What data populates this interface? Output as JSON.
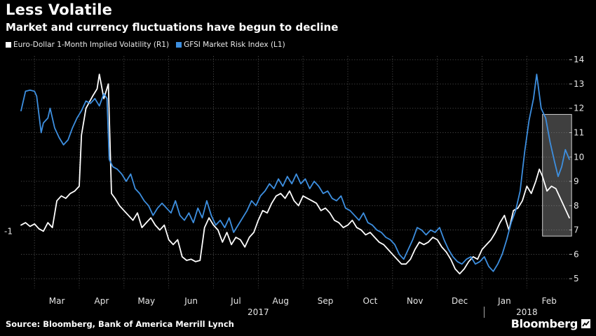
{
  "header": {
    "title": "Less Volatile",
    "subtitle": "Market and currency fluctuations have begun to decline"
  },
  "legend": {
    "items": [
      {
        "label": "Euro-Dollar 1-Month Implied Volatility (R1)",
        "color": "#ffffff"
      },
      {
        "label": "GFSI Market Risk Index (L1)",
        "color": "#3d8fe0"
      }
    ]
  },
  "footer": {
    "source": "Source: Bloomberg, Bank of America Merrill Lynch",
    "brand": "Bloomberg"
  },
  "chart_data": {
    "type": "line",
    "x_unit": "months since 1 March 2017",
    "x_range": [
      -0.3,
      11.95
    ],
    "month_ticks": [
      {
        "label": "Mar",
        "x": 0.5
      },
      {
        "label": "Apr",
        "x": 1.5
      },
      {
        "label": "May",
        "x": 2.5
      },
      {
        "label": "Jun",
        "x": 3.5
      },
      {
        "label": "Jul",
        "x": 4.5
      },
      {
        "label": "Aug",
        "x": 5.5
      },
      {
        "label": "Sep",
        "x": 6.5
      },
      {
        "label": "Oct",
        "x": 7.5
      },
      {
        "label": "Nov",
        "x": 8.5
      },
      {
        "label": "Dec",
        "x": 9.5
      },
      {
        "label": "Jan",
        "x": 10.5
      },
      {
        "label": "Feb",
        "x": 11.5
      }
    ],
    "year_labels": [
      {
        "label": "2017",
        "x": 5.0
      },
      {
        "label": "2018",
        "x": 11.0
      }
    ],
    "year_divider_x": 10.0,
    "right_axis": {
      "ticks": [
        5,
        6,
        7,
        8,
        9,
        10,
        11,
        12,
        13,
        14
      ],
      "range": [
        4.6,
        14.15
      ]
    },
    "left_axis": {
      "ticks": [
        -1
      ],
      "value_at_right": 6.95
    },
    "highlight_box": {
      "x0": 11.35,
      "x1": 12.0,
      "y0": 6.75,
      "y1": 11.75
    },
    "grid": true,
    "legend_position": "top-left",
    "series": [
      {
        "name": "Euro-Dollar 1-Month Implied Volatility (R1)",
        "color": "#ffffff",
        "axis": "right",
        "points": [
          [
            -0.3,
            7.2
          ],
          [
            -0.2,
            7.3
          ],
          [
            -0.1,
            7.15
          ],
          [
            0,
            7.25
          ],
          [
            0.1,
            7.05
          ],
          [
            0.2,
            6.95
          ],
          [
            0.3,
            7.3
          ],
          [
            0.4,
            7.1
          ],
          [
            0.5,
            8.2
          ],
          [
            0.6,
            8.4
          ],
          [
            0.7,
            8.3
          ],
          [
            0.8,
            8.5
          ],
          [
            0.9,
            8.6
          ],
          [
            1.0,
            8.8
          ],
          [
            1.05,
            10.9
          ],
          [
            1.15,
            12.0
          ],
          [
            1.3,
            12.5
          ],
          [
            1.4,
            12.8
          ],
          [
            1.45,
            13.4
          ],
          [
            1.55,
            12.4
          ],
          [
            1.65,
            13.0
          ],
          [
            1.72,
            8.5
          ],
          [
            1.8,
            8.3
          ],
          [
            1.9,
            8.0
          ],
          [
            2.0,
            7.8
          ],
          [
            2.1,
            7.6
          ],
          [
            2.2,
            7.4
          ],
          [
            2.3,
            7.7
          ],
          [
            2.4,
            7.1
          ],
          [
            2.5,
            7.3
          ],
          [
            2.6,
            7.5
          ],
          [
            2.7,
            7.2
          ],
          [
            2.8,
            7.0
          ],
          [
            2.9,
            7.2
          ],
          [
            3.0,
            6.6
          ],
          [
            3.1,
            6.4
          ],
          [
            3.2,
            6.6
          ],
          [
            3.3,
            5.9
          ],
          [
            3.4,
            5.75
          ],
          [
            3.5,
            5.8
          ],
          [
            3.6,
            5.7
          ],
          [
            3.7,
            5.75
          ],
          [
            3.8,
            7.1
          ],
          [
            3.9,
            7.5
          ],
          [
            4.0,
            7.2
          ],
          [
            4.1,
            7.0
          ],
          [
            4.2,
            6.5
          ],
          [
            4.3,
            6.9
          ],
          [
            4.4,
            6.4
          ],
          [
            4.5,
            6.7
          ],
          [
            4.6,
            6.6
          ],
          [
            4.7,
            6.3
          ],
          [
            4.8,
            6.7
          ],
          [
            4.9,
            6.9
          ],
          [
            5.0,
            7.4
          ],
          [
            5.1,
            7.8
          ],
          [
            5.2,
            7.7
          ],
          [
            5.3,
            8.1
          ],
          [
            5.4,
            8.4
          ],
          [
            5.5,
            8.5
          ],
          [
            5.6,
            8.3
          ],
          [
            5.7,
            8.6
          ],
          [
            5.8,
            8.2
          ],
          [
            5.9,
            8.0
          ],
          [
            6.0,
            8.4
          ],
          [
            6.1,
            8.3
          ],
          [
            6.2,
            8.2
          ],
          [
            6.3,
            8.1
          ],
          [
            6.4,
            7.8
          ],
          [
            6.5,
            7.9
          ],
          [
            6.6,
            7.7
          ],
          [
            6.7,
            7.4
          ],
          [
            6.8,
            7.3
          ],
          [
            6.9,
            7.1
          ],
          [
            7.0,
            7.2
          ],
          [
            7.1,
            7.4
          ],
          [
            7.2,
            7.1
          ],
          [
            7.3,
            7.0
          ],
          [
            7.4,
            6.8
          ],
          [
            7.5,
            6.9
          ],
          [
            7.6,
            6.7
          ],
          [
            7.7,
            6.5
          ],
          [
            7.8,
            6.4
          ],
          [
            7.9,
            6.2
          ],
          [
            8.0,
            6.0
          ],
          [
            8.1,
            5.8
          ],
          [
            8.2,
            5.6
          ],
          [
            8.3,
            5.6
          ],
          [
            8.4,
            5.8
          ],
          [
            8.5,
            6.2
          ],
          [
            8.6,
            6.5
          ],
          [
            8.7,
            6.4
          ],
          [
            8.8,
            6.5
          ],
          [
            8.9,
            6.7
          ],
          [
            9.0,
            6.6
          ],
          [
            9.1,
            6.3
          ],
          [
            9.2,
            6.1
          ],
          [
            9.3,
            5.8
          ],
          [
            9.4,
            5.4
          ],
          [
            9.5,
            5.2
          ],
          [
            9.6,
            5.4
          ],
          [
            9.7,
            5.7
          ],
          [
            9.8,
            5.9
          ],
          [
            9.9,
            5.8
          ],
          [
            10.0,
            6.2
          ],
          [
            10.1,
            6.4
          ],
          [
            10.2,
            6.6
          ],
          [
            10.3,
            6.9
          ],
          [
            10.4,
            7.3
          ],
          [
            10.5,
            7.6
          ],
          [
            10.6,
            7.0
          ],
          [
            10.7,
            7.8
          ],
          [
            10.8,
            7.9
          ],
          [
            10.9,
            8.2
          ],
          [
            11.0,
            8.8
          ],
          [
            11.1,
            8.5
          ],
          [
            11.2,
            9.0
          ],
          [
            11.28,
            9.5
          ],
          [
            11.35,
            9.2
          ],
          [
            11.45,
            8.6
          ],
          [
            11.55,
            8.8
          ],
          [
            11.65,
            8.7
          ],
          [
            11.75,
            8.3
          ],
          [
            11.85,
            7.9
          ],
          [
            11.95,
            7.5
          ]
        ]
      },
      {
        "name": "GFSI Market Risk Index (L1)",
        "color": "#3d8fe0",
        "axis": "left",
        "points": [
          [
            -0.3,
            11.9
          ],
          [
            -0.2,
            12.7
          ],
          [
            -0.1,
            12.75
          ],
          [
            0,
            12.7
          ],
          [
            0.05,
            12.5
          ],
          [
            0.15,
            11.0
          ],
          [
            0.2,
            11.4
          ],
          [
            0.3,
            11.6
          ],
          [
            0.35,
            12.0
          ],
          [
            0.45,
            11.2
          ],
          [
            0.55,
            10.8
          ],
          [
            0.65,
            10.5
          ],
          [
            0.75,
            10.7
          ],
          [
            0.85,
            11.2
          ],
          [
            0.95,
            11.6
          ],
          [
            1.05,
            11.9
          ],
          [
            1.15,
            12.3
          ],
          [
            1.25,
            12.2
          ],
          [
            1.35,
            12.4
          ],
          [
            1.45,
            12.1
          ],
          [
            1.55,
            12.6
          ],
          [
            1.62,
            12.4
          ],
          [
            1.67,
            9.9
          ],
          [
            1.75,
            9.6
          ],
          [
            1.85,
            9.5
          ],
          [
            1.95,
            9.3
          ],
          [
            2.05,
            9.0
          ],
          [
            2.15,
            9.3
          ],
          [
            2.25,
            8.7
          ],
          [
            2.35,
            8.5
          ],
          [
            2.45,
            8.2
          ],
          [
            2.55,
            8.0
          ],
          [
            2.65,
            7.6
          ],
          [
            2.75,
            7.9
          ],
          [
            2.85,
            8.1
          ],
          [
            2.95,
            7.9
          ],
          [
            3.05,
            7.7
          ],
          [
            3.15,
            8.2
          ],
          [
            3.25,
            7.6
          ],
          [
            3.35,
            7.4
          ],
          [
            3.45,
            7.7
          ],
          [
            3.55,
            7.3
          ],
          [
            3.65,
            7.9
          ],
          [
            3.75,
            7.5
          ],
          [
            3.85,
            8.2
          ],
          [
            3.95,
            7.6
          ],
          [
            4.05,
            7.2
          ],
          [
            4.15,
            7.4
          ],
          [
            4.25,
            7.1
          ],
          [
            4.35,
            7.5
          ],
          [
            4.45,
            6.9
          ],
          [
            4.55,
            7.2
          ],
          [
            4.65,
            7.5
          ],
          [
            4.75,
            7.8
          ],
          [
            4.85,
            8.2
          ],
          [
            4.95,
            8.0
          ],
          [
            5.05,
            8.4
          ],
          [
            5.15,
            8.6
          ],
          [
            5.25,
            8.9
          ],
          [
            5.35,
            8.7
          ],
          [
            5.45,
            9.1
          ],
          [
            5.55,
            8.8
          ],
          [
            5.65,
            9.2
          ],
          [
            5.75,
            8.9
          ],
          [
            5.85,
            9.3
          ],
          [
            5.95,
            8.9
          ],
          [
            6.05,
            9.1
          ],
          [
            6.15,
            8.7
          ],
          [
            6.25,
            9.0
          ],
          [
            6.35,
            8.8
          ],
          [
            6.45,
            8.5
          ],
          [
            6.55,
            8.6
          ],
          [
            6.65,
            8.3
          ],
          [
            6.75,
            8.2
          ],
          [
            6.85,
            8.4
          ],
          [
            6.95,
            7.9
          ],
          [
            7.05,
            7.8
          ],
          [
            7.15,
            7.6
          ],
          [
            7.25,
            7.4
          ],
          [
            7.35,
            7.7
          ],
          [
            7.45,
            7.3
          ],
          [
            7.55,
            7.2
          ],
          [
            7.65,
            7.0
          ],
          [
            7.75,
            6.9
          ],
          [
            7.85,
            6.7
          ],
          [
            7.95,
            6.6
          ],
          [
            8.05,
            6.4
          ],
          [
            8.15,
            6.0
          ],
          [
            8.25,
            5.8
          ],
          [
            8.35,
            6.2
          ],
          [
            8.45,
            6.6
          ],
          [
            8.55,
            7.1
          ],
          [
            8.65,
            7.0
          ],
          [
            8.75,
            6.8
          ],
          [
            8.85,
            7.0
          ],
          [
            8.95,
            6.9
          ],
          [
            9.05,
            7.1
          ],
          [
            9.15,
            6.6
          ],
          [
            9.25,
            6.2
          ],
          [
            9.35,
            5.9
          ],
          [
            9.45,
            5.7
          ],
          [
            9.55,
            5.6
          ],
          [
            9.65,
            5.8
          ],
          [
            9.75,
            5.9
          ],
          [
            9.85,
            5.6
          ],
          [
            9.95,
            5.7
          ],
          [
            10.05,
            5.9
          ],
          [
            10.15,
            5.5
          ],
          [
            10.25,
            5.3
          ],
          [
            10.35,
            5.6
          ],
          [
            10.45,
            6.0
          ],
          [
            10.55,
            6.6
          ],
          [
            10.65,
            7.3
          ],
          [
            10.75,
            7.8
          ],
          [
            10.85,
            8.6
          ],
          [
            10.95,
            10.2
          ],
          [
            11.05,
            11.5
          ],
          [
            11.15,
            12.4
          ],
          [
            11.22,
            13.4
          ],
          [
            11.32,
            12.0
          ],
          [
            11.42,
            11.6
          ],
          [
            11.52,
            10.6
          ],
          [
            11.62,
            9.8
          ],
          [
            11.7,
            9.2
          ],
          [
            11.78,
            9.6
          ],
          [
            11.86,
            10.3
          ],
          [
            11.95,
            9.9
          ]
        ]
      }
    ]
  }
}
